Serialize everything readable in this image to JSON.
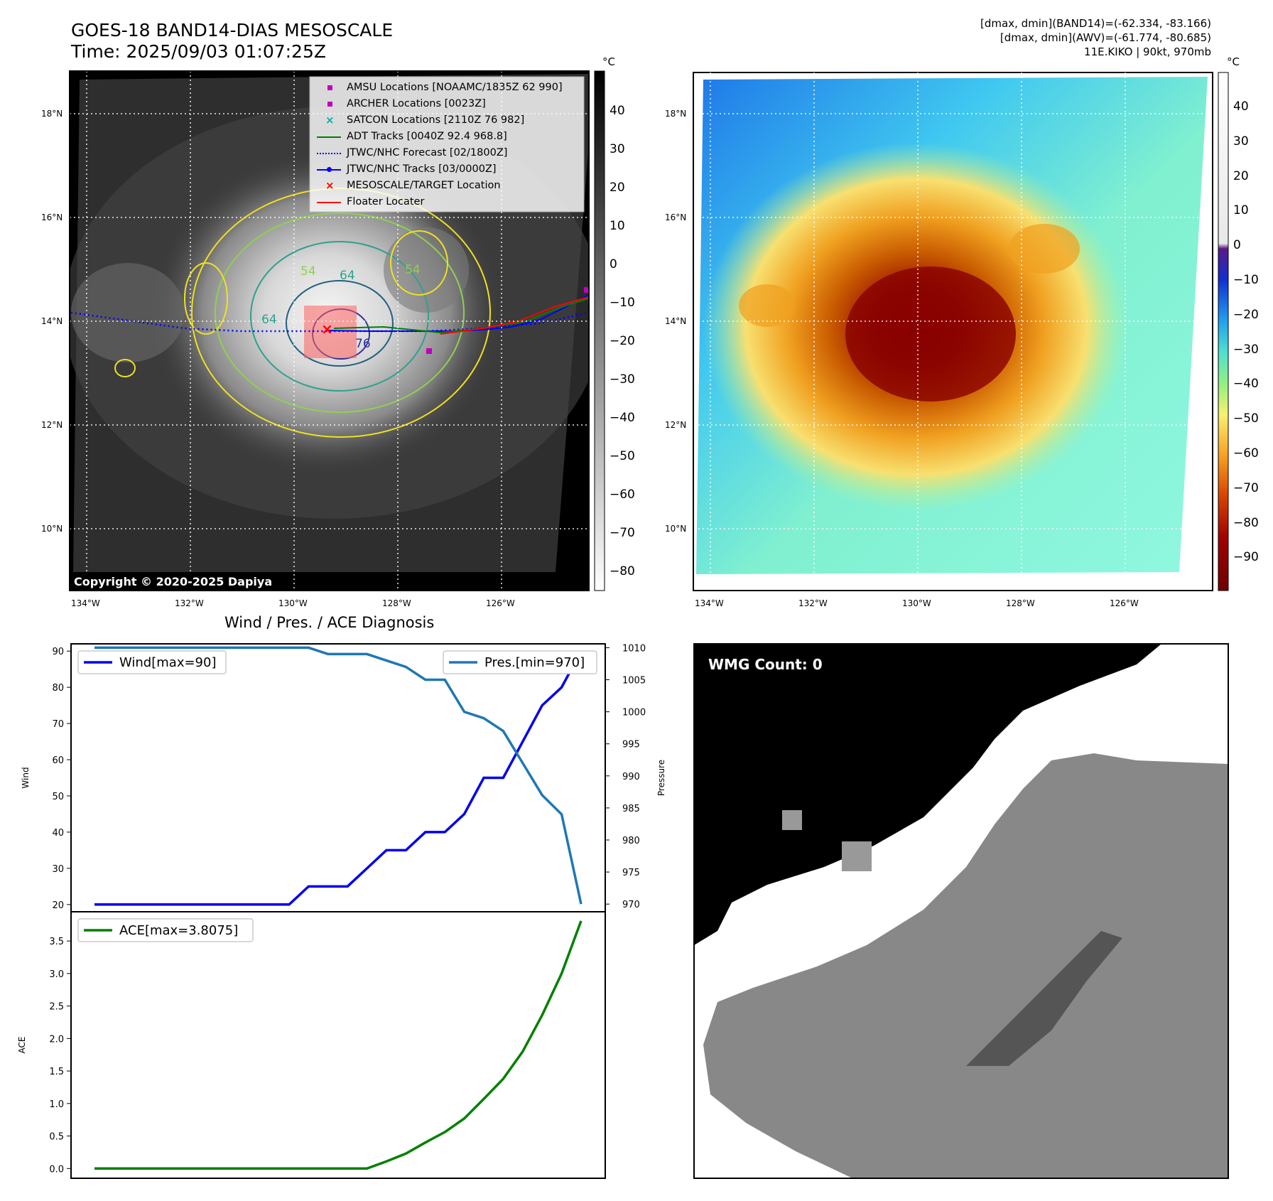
{
  "header": {
    "title_line1": "GOES-18 BAND14-DIAS MESOSCALE",
    "title_line2": "Time: 2025/09/03 01:07:25Z",
    "stats_line1": "[dmax, dmin](BAND14)=(-62.334, -83.166)",
    "stats_line2": "[dmax, dmin](AWV)=(-61.774, -80.685)",
    "stats_line3": "11E.KIKO | 90kt, 970mb"
  },
  "map": {
    "lat_labels": [
      "18°N",
      "16°N",
      "14°N",
      "12°N",
      "10°N"
    ],
    "lon_labels": [
      "134°W",
      "132°W",
      "130°W",
      "128°W",
      "126°W"
    ],
    "copyright": "Copyright © 2020-2025 Dapiya",
    "contour_labels": [
      "54",
      "64",
      "54",
      "64",
      "76"
    ],
    "legend": [
      {
        "label": "AMSU Locations [NOAAMC/1835Z 62 990]",
        "color": "#c000c0",
        "marker": "square"
      },
      {
        "label": "ARCHER Locations [0023Z]",
        "color": "#c000c0",
        "marker": "square"
      },
      {
        "label": "SATCON Locations [2110Z 76 982]",
        "color": "#00b0b0",
        "marker": "x"
      },
      {
        "label": "ADT Tracks [0040Z 92.4 968.8]",
        "color": "#008000",
        "marker": "line"
      },
      {
        "label": "JTWC/NHC Forecast [02/1800Z]",
        "color": "#0000ff",
        "marker": "dotted"
      },
      {
        "label": "JTWC/NHC Tracks [03/0000Z]",
        "color": "#0000ff",
        "marker": "line-dot"
      },
      {
        "label": "MESOSCALE/TARGET Location",
        "color": "#ff0000",
        "marker": "x"
      },
      {
        "label": "Floater Locater",
        "color": "#ff0000",
        "marker": "line"
      }
    ]
  },
  "colorbar_left": {
    "unit": "°C",
    "ticks": [
      "40",
      "30",
      "20",
      "10",
      "0",
      "−10",
      "−20",
      "−30",
      "−40",
      "−50",
      "−60",
      "−70",
      "−80"
    ]
  },
  "colorbar_right": {
    "unit": "°C",
    "ticks": [
      "40",
      "30",
      "20",
      "10",
      "0",
      "−10",
      "−20",
      "−30",
      "−40",
      "−50",
      "−60",
      "−70",
      "−80",
      "−90"
    ]
  },
  "wmg": {
    "label": "WMG Count: 0"
  },
  "chart_data": [
    {
      "type": "line",
      "title": "Wind / Pres. / ACE Diagnosis",
      "ylabel": "Wind",
      "y2label": "Pressure",
      "ylim": [
        18,
        92
      ],
      "y2lim": [
        968.8,
        1010.6
      ],
      "yticks": [
        20,
        30,
        40,
        50,
        60,
        70,
        80,
        90
      ],
      "y2ticks": [
        970,
        975,
        980,
        985,
        990,
        995,
        1000,
        1005,
        1010
      ],
      "series": [
        {
          "name": "Wind[max=90]",
          "color": "#0000ee",
          "values": [
            20,
            20,
            20,
            20,
            20,
            20,
            20,
            20,
            20,
            20,
            20,
            25,
            25,
            25,
            30,
            35,
            35,
            40,
            40,
            45,
            55,
            55,
            65,
            75,
            80,
            90
          ]
        },
        {
          "name": "Pres.[min=970]",
          "color": "#1f77b4",
          "axis": "right",
          "values": [
            1010,
            1010,
            1010,
            1010,
            1010,
            1010,
            1010,
            1010,
            1010,
            1010,
            1010,
            1010,
            1009,
            1009,
            1009,
            1008,
            1007,
            1005,
            1005,
            1000,
            999,
            997,
            992,
            987,
            984,
            970
          ]
        }
      ]
    },
    {
      "type": "line",
      "ylabel": "ACE",
      "ylim": [
        -0.15,
        3.95
      ],
      "yticks": [
        0.0,
        0.5,
        1.0,
        1.5,
        2.0,
        2.5,
        3.0,
        3.5
      ],
      "series": [
        {
          "name": "ACE[max=3.8075]",
          "color": "#008000",
          "values": [
            0,
            0,
            0,
            0,
            0,
            0,
            0,
            0,
            0,
            0,
            0,
            0,
            0,
            0,
            0,
            0.11,
            0.23,
            0.4,
            0.56,
            0.77,
            1.07,
            1.38,
            1.8,
            2.36,
            3.0,
            3.81
          ]
        }
      ]
    }
  ]
}
